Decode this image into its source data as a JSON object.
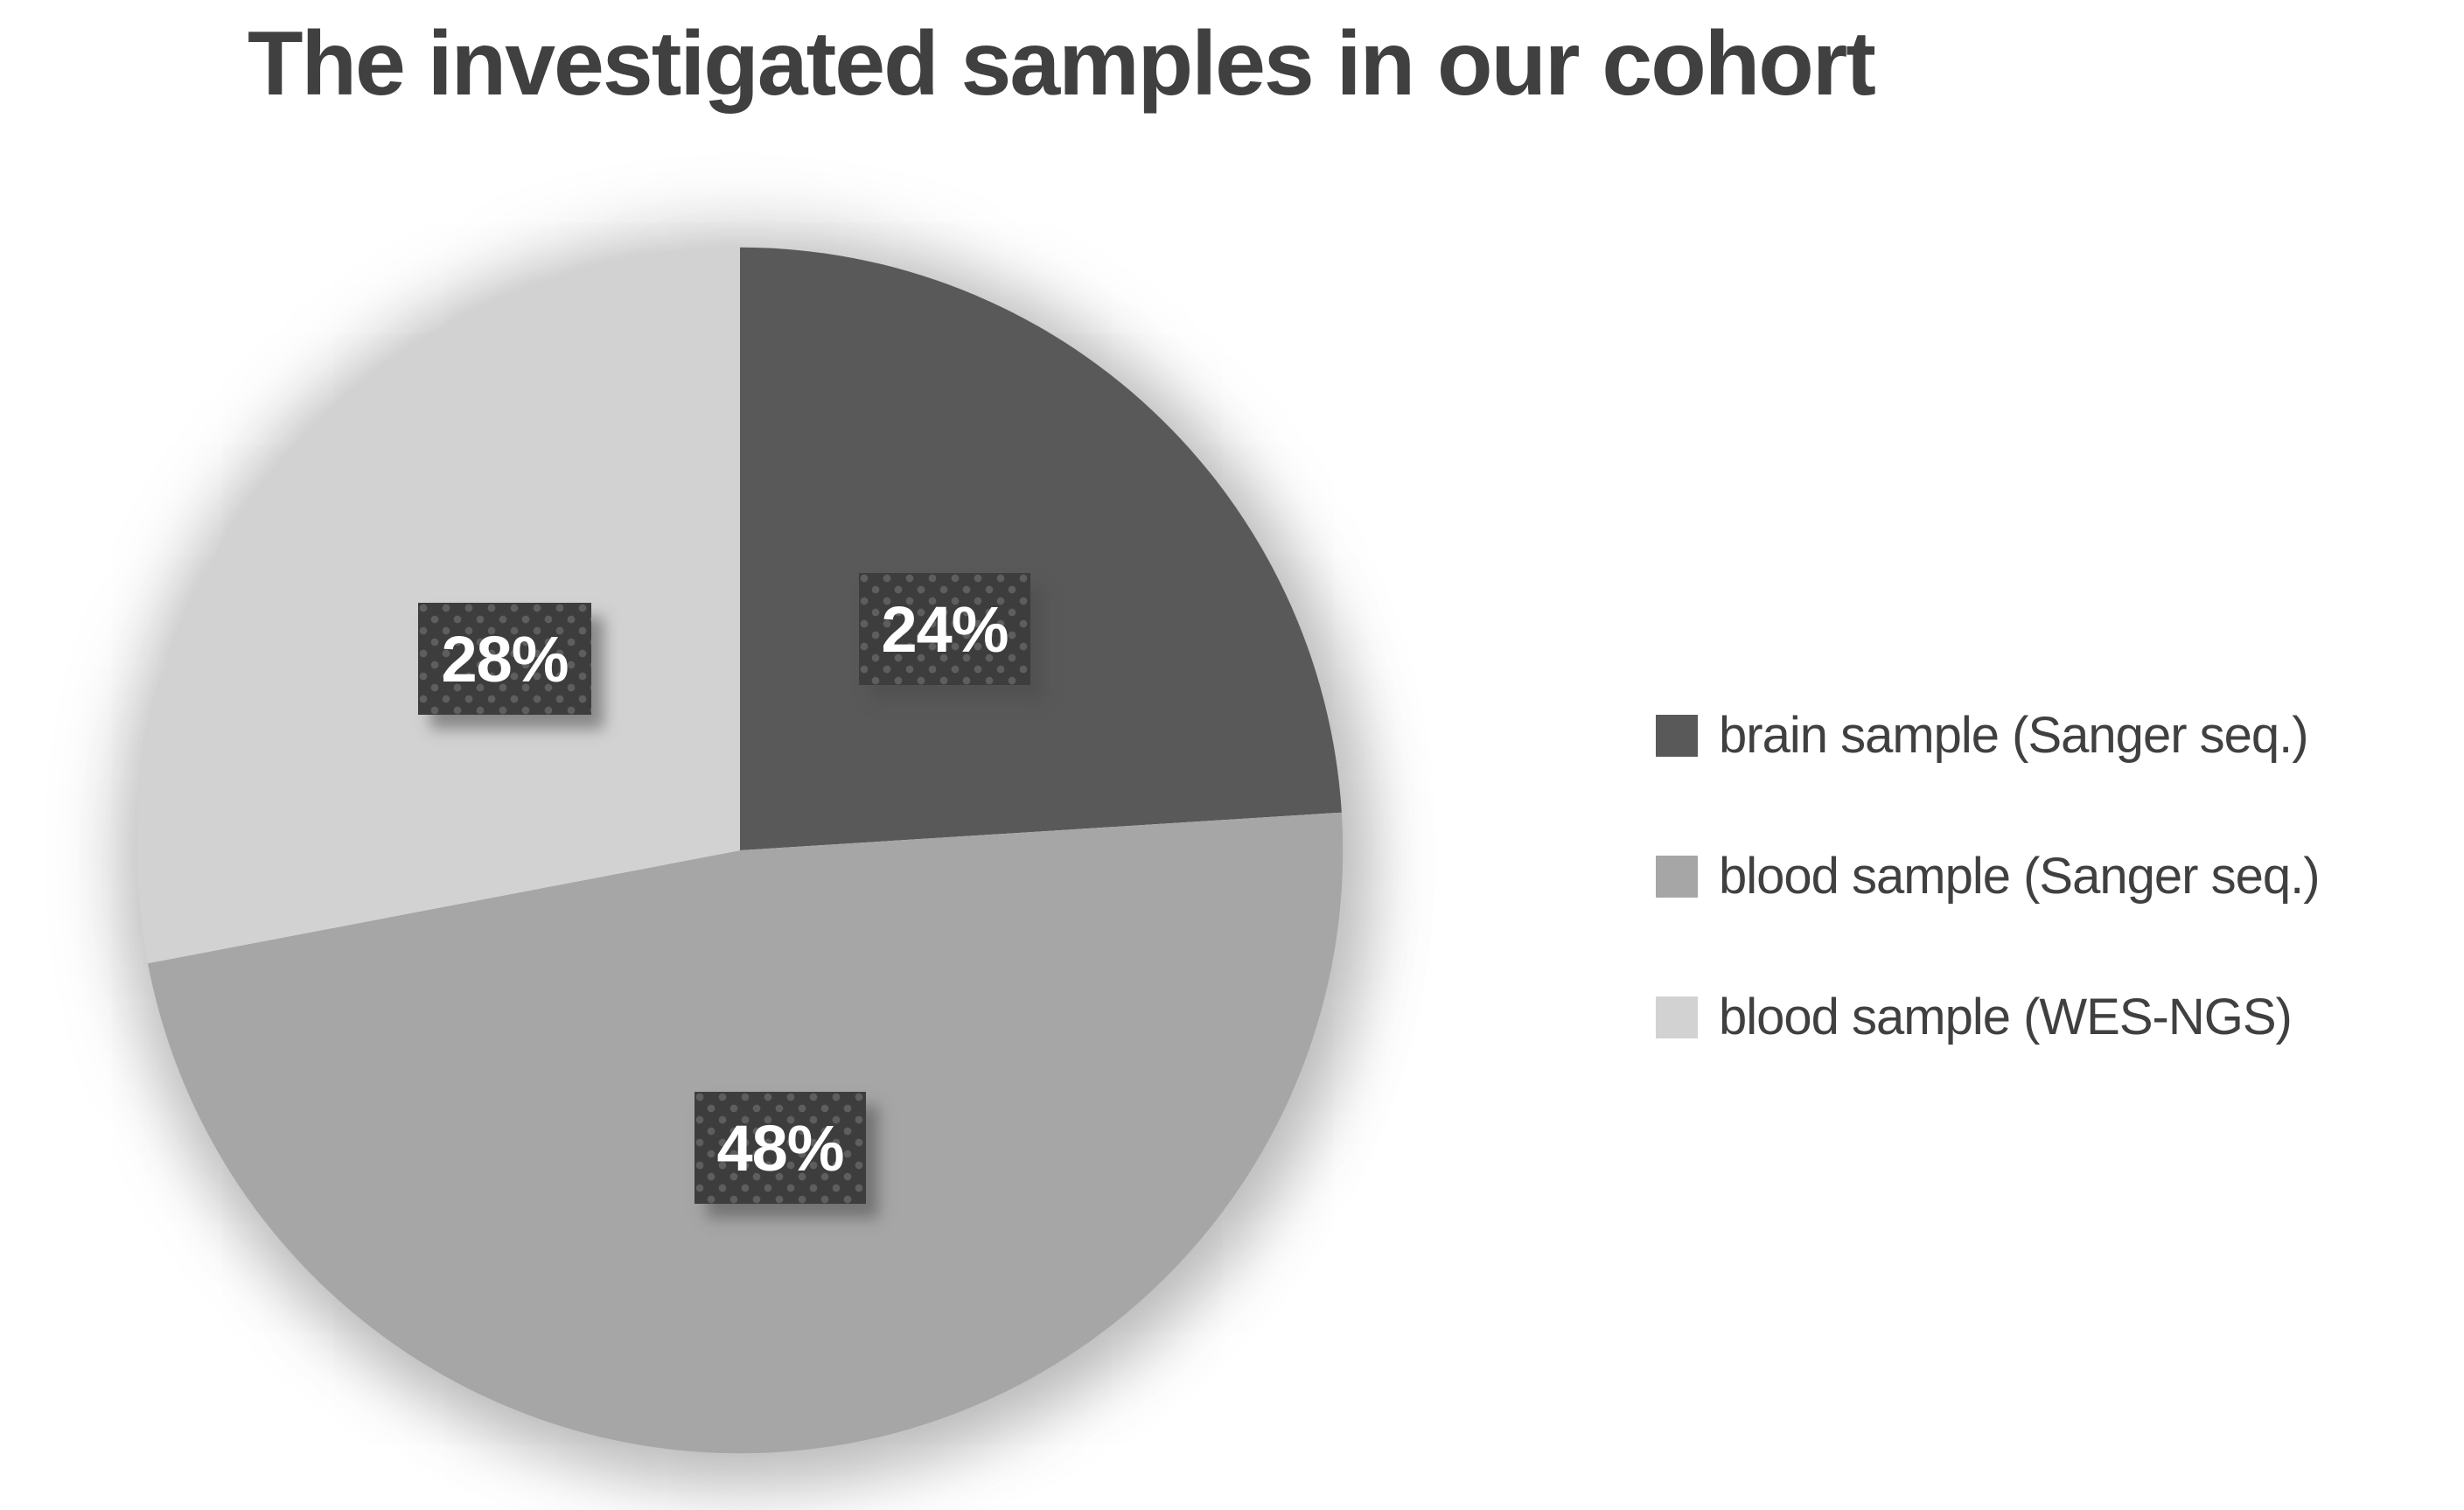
{
  "chart_data": {
    "type": "pie",
    "title": "The investigated samples in our cohort",
    "start_angle_deg": 0,
    "direction": "clockwise",
    "legend_position": "right",
    "percent_labels_shown": true,
    "background_color": "#ffffff",
    "title_color": "#404040",
    "legend_text_color": "#404040",
    "slices": [
      {
        "label": "brain sample (Sanger seq.)",
        "value": 24,
        "display": "24%",
        "color": "#595959"
      },
      {
        "label": "blood sample (Sanger seq.)",
        "value": 48,
        "display": "48%",
        "color": "#a6a6a6"
      },
      {
        "label": "blood sample (WES-NGS)",
        "value": 28,
        "display": "28%",
        "color": "#d2d2d2"
      }
    ],
    "label_box": {
      "fill": "#3d3d3d",
      "dot_color": "#5e5e5e",
      "text_color": "#ffffff"
    }
  }
}
